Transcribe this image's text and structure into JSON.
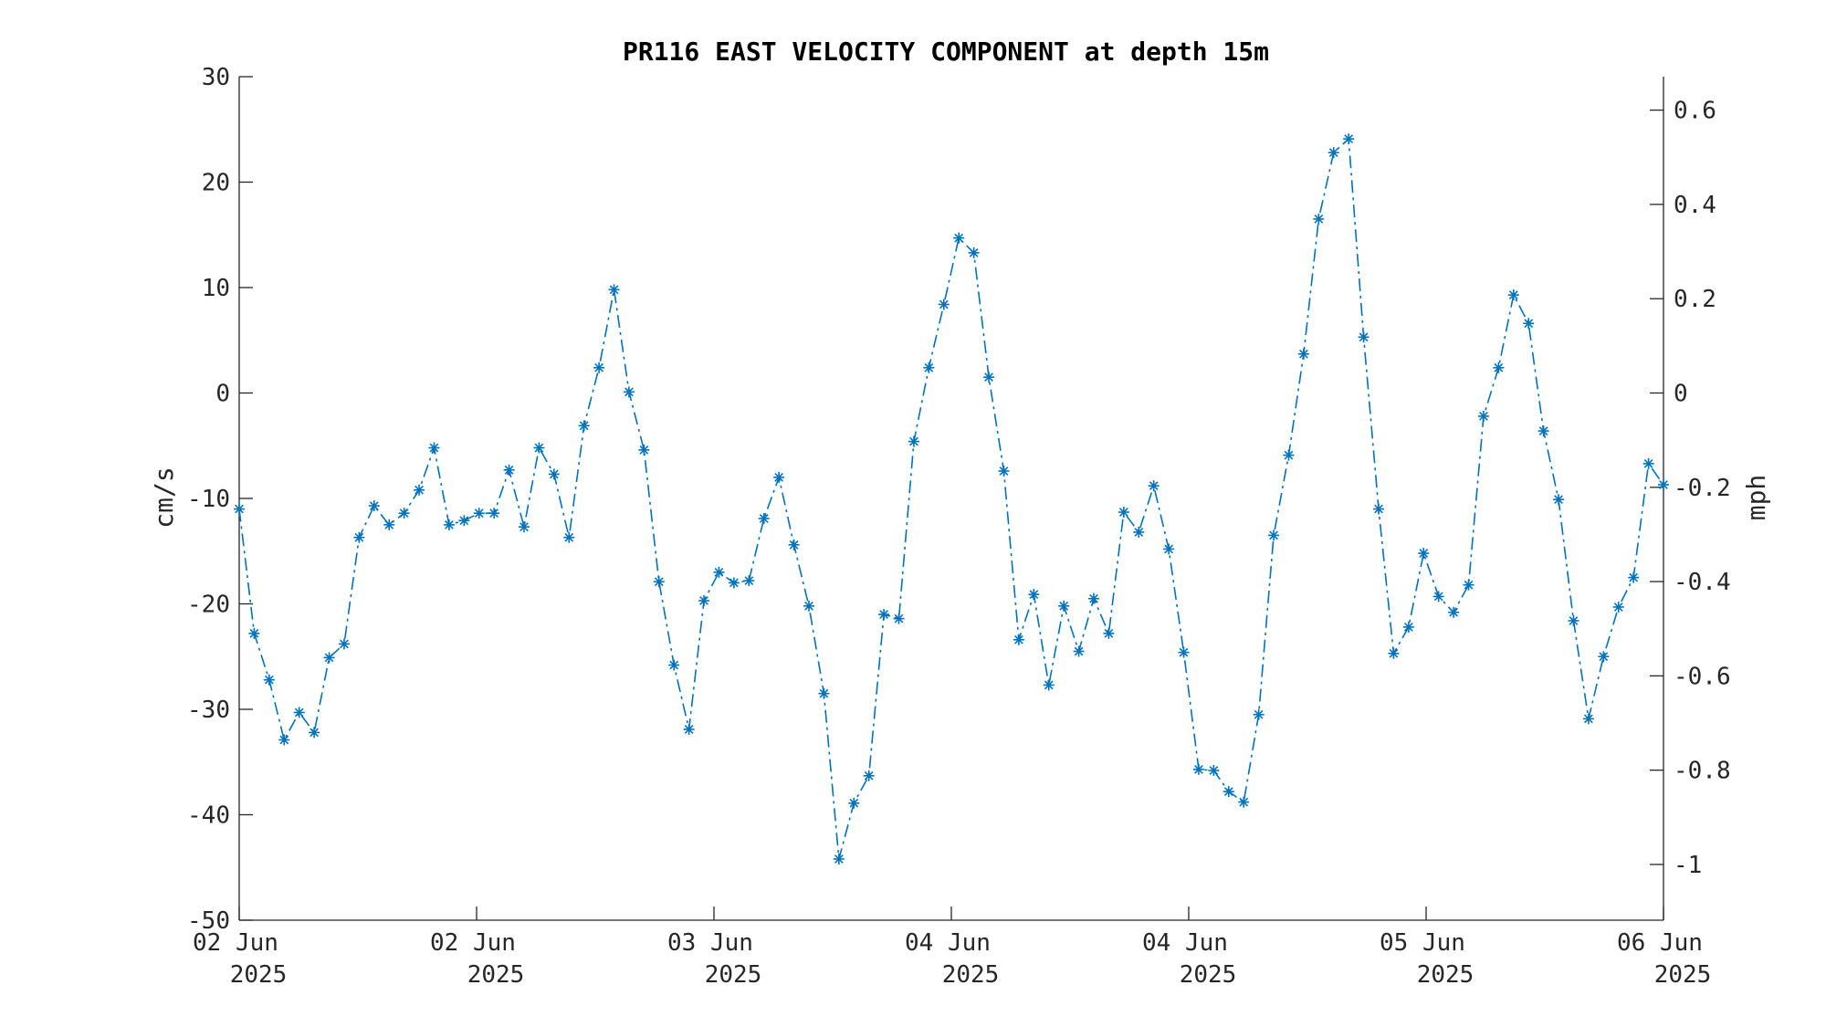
{
  "chart_data": {
    "type": "line",
    "title": "PR116 EAST VELOCITY COMPONENT at depth 15m",
    "ylabel": "cm/s",
    "y2label": "mph",
    "ylim": [
      -50,
      30
    ],
    "y2lim": [
      -1.1182,
      0.6709
    ],
    "yticks": [
      "-50",
      "-40",
      "-30",
      "-20",
      "-10",
      "0",
      "10",
      "20",
      "30"
    ],
    "y2ticks": [
      "-1",
      "-0.8",
      "-0.6",
      "-0.4",
      "-0.2",
      "0",
      "0.2",
      "0.4",
      "0.6"
    ],
    "xticks": [
      {
        "line1": "02 Jun",
        "line2": "2025"
      },
      {
        "line1": "02 Jun",
        "line2": "2025"
      },
      {
        "line1": "03 Jun",
        "line2": "2025"
      },
      {
        "line1": "04 Jun",
        "line2": "2025"
      },
      {
        "line1": "04 Jun",
        "line2": "2025"
      },
      {
        "line1": "05 Jun",
        "line2": "2025"
      },
      {
        "line1": "06 Jun",
        "line2": "2025"
      }
    ],
    "grid": false,
    "series": [
      {
        "color": "#0072BD",
        "line_style": "dash-dot",
        "marker": "asterisk",
        "values": [
          -11.0,
          -22.8,
          -27.2,
          -32.9,
          -30.3,
          -32.2,
          -25.1,
          -23.8,
          -13.7,
          -10.7,
          -12.5,
          -11.4,
          -9.2,
          -5.2,
          -12.5,
          -12.1,
          -11.4,
          -11.4,
          -7.3,
          -12.7,
          -5.2,
          -7.7,
          -13.7,
          -3.1,
          2.4,
          9.8,
          0.1,
          -5.4,
          -17.9,
          -25.8,
          -31.9,
          -19.7,
          -17.0,
          -18.0,
          -17.8,
          -11.9,
          -8.0,
          -14.4,
          -20.2,
          -28.5,
          -44.2,
          -38.9,
          -36.3,
          -21.0,
          -21.4,
          -4.6,
          2.4,
          8.4,
          14.7,
          13.3,
          1.5,
          -7.4,
          -23.4,
          -19.1,
          -27.7,
          -20.2,
          -24.5,
          -19.5,
          -22.8,
          -11.3,
          -13.2,
          -8.8,
          -14.8,
          -24.6,
          -35.7,
          -35.8,
          -37.8,
          -38.8,
          -30.5,
          -13.5,
          -5.9,
          3.7,
          16.5,
          22.8,
          24.1,
          5.3,
          -11.0,
          -24.7,
          -22.2,
          -15.2,
          -19.3,
          -20.8,
          -18.2,
          -2.2,
          2.4,
          9.3,
          6.6,
          -3.6,
          -10.1,
          -21.6,
          -30.9,
          -25.0,
          -20.3,
          -17.5,
          -6.7,
          -8.7
        ]
      }
    ]
  }
}
